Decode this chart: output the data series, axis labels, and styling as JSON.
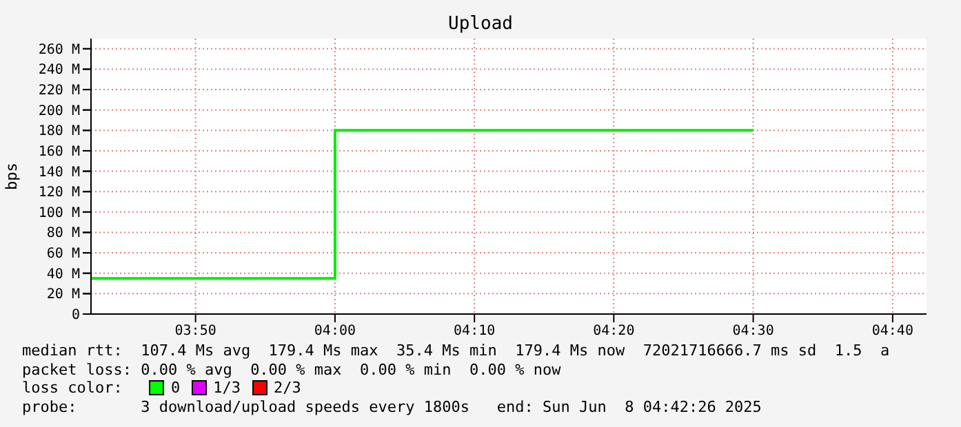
{
  "chart_data": {
    "type": "step",
    "title": "Upload",
    "ylabel": "bps",
    "x": [
      3.7083,
      4.0,
      4.5
    ],
    "series": [
      {
        "color": "#00ee00",
        "values": [
          35,
          180,
          180
        ]
      }
    ],
    "xlim": [
      3.7083,
      4.7072
    ],
    "xticks": [
      {
        "value": 3.8333,
        "label": "03:50"
      },
      {
        "value": 4.0,
        "label": "04:00"
      },
      {
        "value": 4.1667,
        "label": "04:10"
      },
      {
        "value": 4.3333,
        "label": "04:20"
      },
      {
        "value": 4.5,
        "label": "04:30"
      },
      {
        "value": 4.6667,
        "label": "04:40"
      }
    ],
    "ylim": [
      0,
      270
    ],
    "yticks": [
      0,
      {
        "value": 20,
        "label": "20 M"
      },
      {
        "value": 40,
        "label": "40 M"
      },
      {
        "value": 60,
        "label": "60 M"
      },
      {
        "value": 80,
        "label": "80 M"
      },
      {
        "value": 100,
        "label": "100 M"
      },
      {
        "value": 120,
        "label": "120 M"
      },
      {
        "value": 140,
        "label": "140 M"
      },
      {
        "value": 160,
        "label": "160 M"
      },
      {
        "value": 180,
        "label": "180 M"
      },
      {
        "value": 200,
        "label": "200 M"
      },
      {
        "value": 220,
        "label": "220 M"
      },
      {
        "value": 240,
        "label": "240 M"
      },
      {
        "value": 260,
        "label": "260 M"
      }
    ],
    "grid": true,
    "annotations": [
      "median rtt:  107.4 Ms avg  179.4 Ms max  35.4 Ms min  179.4 Ms now  72021716666.7 ms sd  1.5  a",
      "packet loss: 0.00 % avg  0.00 % max  0.00 % min  0.00 % now",
      "loss color:",
      "0",
      "1/3",
      "2/3",
      "probe:       3 download/upload speeds every 1800s   end: Sun Jun  8 04:42:26 2025"
    ]
  }
}
